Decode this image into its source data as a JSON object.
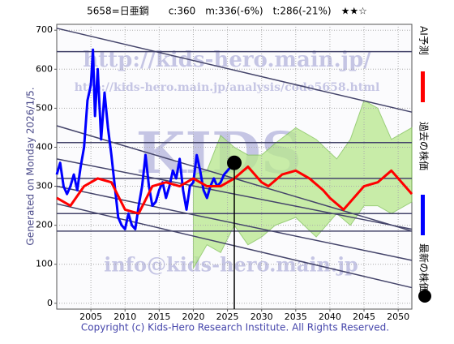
{
  "chart_data": {
    "type": "line",
    "title": "5658=日亜鋼　　c:360　m:336(-6%)　t:286(-21%)　★★☆",
    "annotation": "Generated on Monday 2026/1/5.",
    "footer": "Copyright (c) Kids-Hero Research Institute. All Rights Reserved.",
    "watermarks": [
      "http://kids-hero.main.jp/",
      "http://kids-hero.main.jp/analysis/code5658.html",
      "KIDS",
      "info@kids-hero.main.jp"
    ],
    "xlim": [
      2000,
      2052
    ],
    "ylim": [
      -15,
      715
    ],
    "xticks": [
      2005,
      2010,
      2015,
      2020,
      2025,
      2030,
      2035,
      2040,
      2045,
      2050
    ],
    "yticks": [
      0,
      100,
      200,
      300,
      400,
      500,
      600,
      700
    ],
    "grid": true,
    "series": [
      {
        "name": "過去の株価",
        "color": "#0000ff",
        "x": [
          2000,
          2000.5,
          2001,
          2001.5,
          2002,
          2002.5,
          2003,
          2003.5,
          2004,
          2004.5,
          2005,
          2005.3,
          2005.6,
          2006,
          2006.5,
          2007,
          2007.5,
          2008,
          2008.5,
          2009,
          2009.5,
          2010,
          2010.5,
          2011,
          2011.5,
          2012,
          2012.5,
          2013,
          2013.5,
          2014,
          2014.5,
          2015,
          2015.5,
          2016,
          2016.5,
          2017,
          2017.5,
          2018,
          2018.5,
          2019,
          2019.5,
          2020,
          2020.5,
          2021,
          2021.5,
          2022,
          2022.5,
          2023,
          2023.5,
          2024,
          2024.5,
          2025,
          2025.5,
          2026
        ],
        "values": [
          330,
          360,
          300,
          280,
          300,
          330,
          290,
          350,
          400,
          520,
          560,
          650,
          480,
          600,
          420,
          540,
          450,
          380,
          300,
          220,
          200,
          190,
          230,
          200,
          190,
          250,
          300,
          380,
          300,
          250,
          260,
          290,
          310,
          270,
          300,
          340,
          320,
          370,
          290,
          240,
          300,
          310,
          380,
          340,
          290,
          270,
          300,
          320,
          300,
          310,
          330,
          340,
          350,
          360
        ]
      },
      {
        "name": "AI予測",
        "color": "#ff0000",
        "x": [
          2000,
          2002,
          2004,
          2006,
          2008,
          2010,
          2012,
          2014,
          2016,
          2018,
          2020,
          2022,
          2024,
          2026,
          2028,
          2030,
          2031,
          2033,
          2035,
          2037,
          2039,
          2040,
          2042,
          2044,
          2045,
          2047,
          2049,
          2050,
          2052
        ],
        "values": [
          270,
          250,
          300,
          320,
          310,
          240,
          230,
          300,
          310,
          300,
          320,
          300,
          300,
          320,
          350,
          310,
          300,
          330,
          340,
          320,
          290,
          270,
          240,
          280,
          300,
          310,
          340,
          320,
          280
        ]
      }
    ],
    "latest": {
      "name": "最新の株価",
      "x": 2026,
      "value": 360
    },
    "band": {
      "x": [
        2020,
        2022,
        2024,
        2026,
        2028,
        2030,
        2032,
        2035,
        2038,
        2041,
        2043,
        2045,
        2047,
        2049,
        2052
      ],
      "upper": [
        330,
        340,
        430,
        400,
        380,
        380,
        410,
        450,
        420,
        370,
        420,
        520,
        500,
        420,
        450
      ],
      "lower": [
        90,
        150,
        130,
        200,
        150,
        170,
        200,
        220,
        170,
        230,
        200,
        250,
        250,
        230,
        260
      ]
    },
    "trend_lines": [
      {
        "x": [
          2000,
          2052
        ],
        "values": [
          645,
          645
        ]
      },
      {
        "x": [
          2000,
          2052
        ],
        "values": [
          412,
          412
        ]
      },
      {
        "x": [
          2000,
          2052
        ],
        "values": [
          320,
          320
        ]
      },
      {
        "x": [
          2000,
          2052
        ],
        "values": [
          230,
          230
        ]
      },
      {
        "x": [
          2000,
          2052
        ],
        "values": [
          185,
          185
        ]
      },
      {
        "x": [
          2000,
          2052
        ],
        "values": [
          705,
          490
        ]
      },
      {
        "x": [
          2000,
          2052
        ],
        "values": [
          455,
          185
        ]
      },
      {
        "x": [
          2000,
          2052
        ],
        "values": [
          370,
          190
        ]
      },
      {
        "x": [
          2000,
          2052
        ],
        "values": [
          300,
          110
        ]
      },
      {
        "x": [
          2000,
          2052
        ],
        "values": [
          255,
          40
        ]
      }
    ]
  }
}
